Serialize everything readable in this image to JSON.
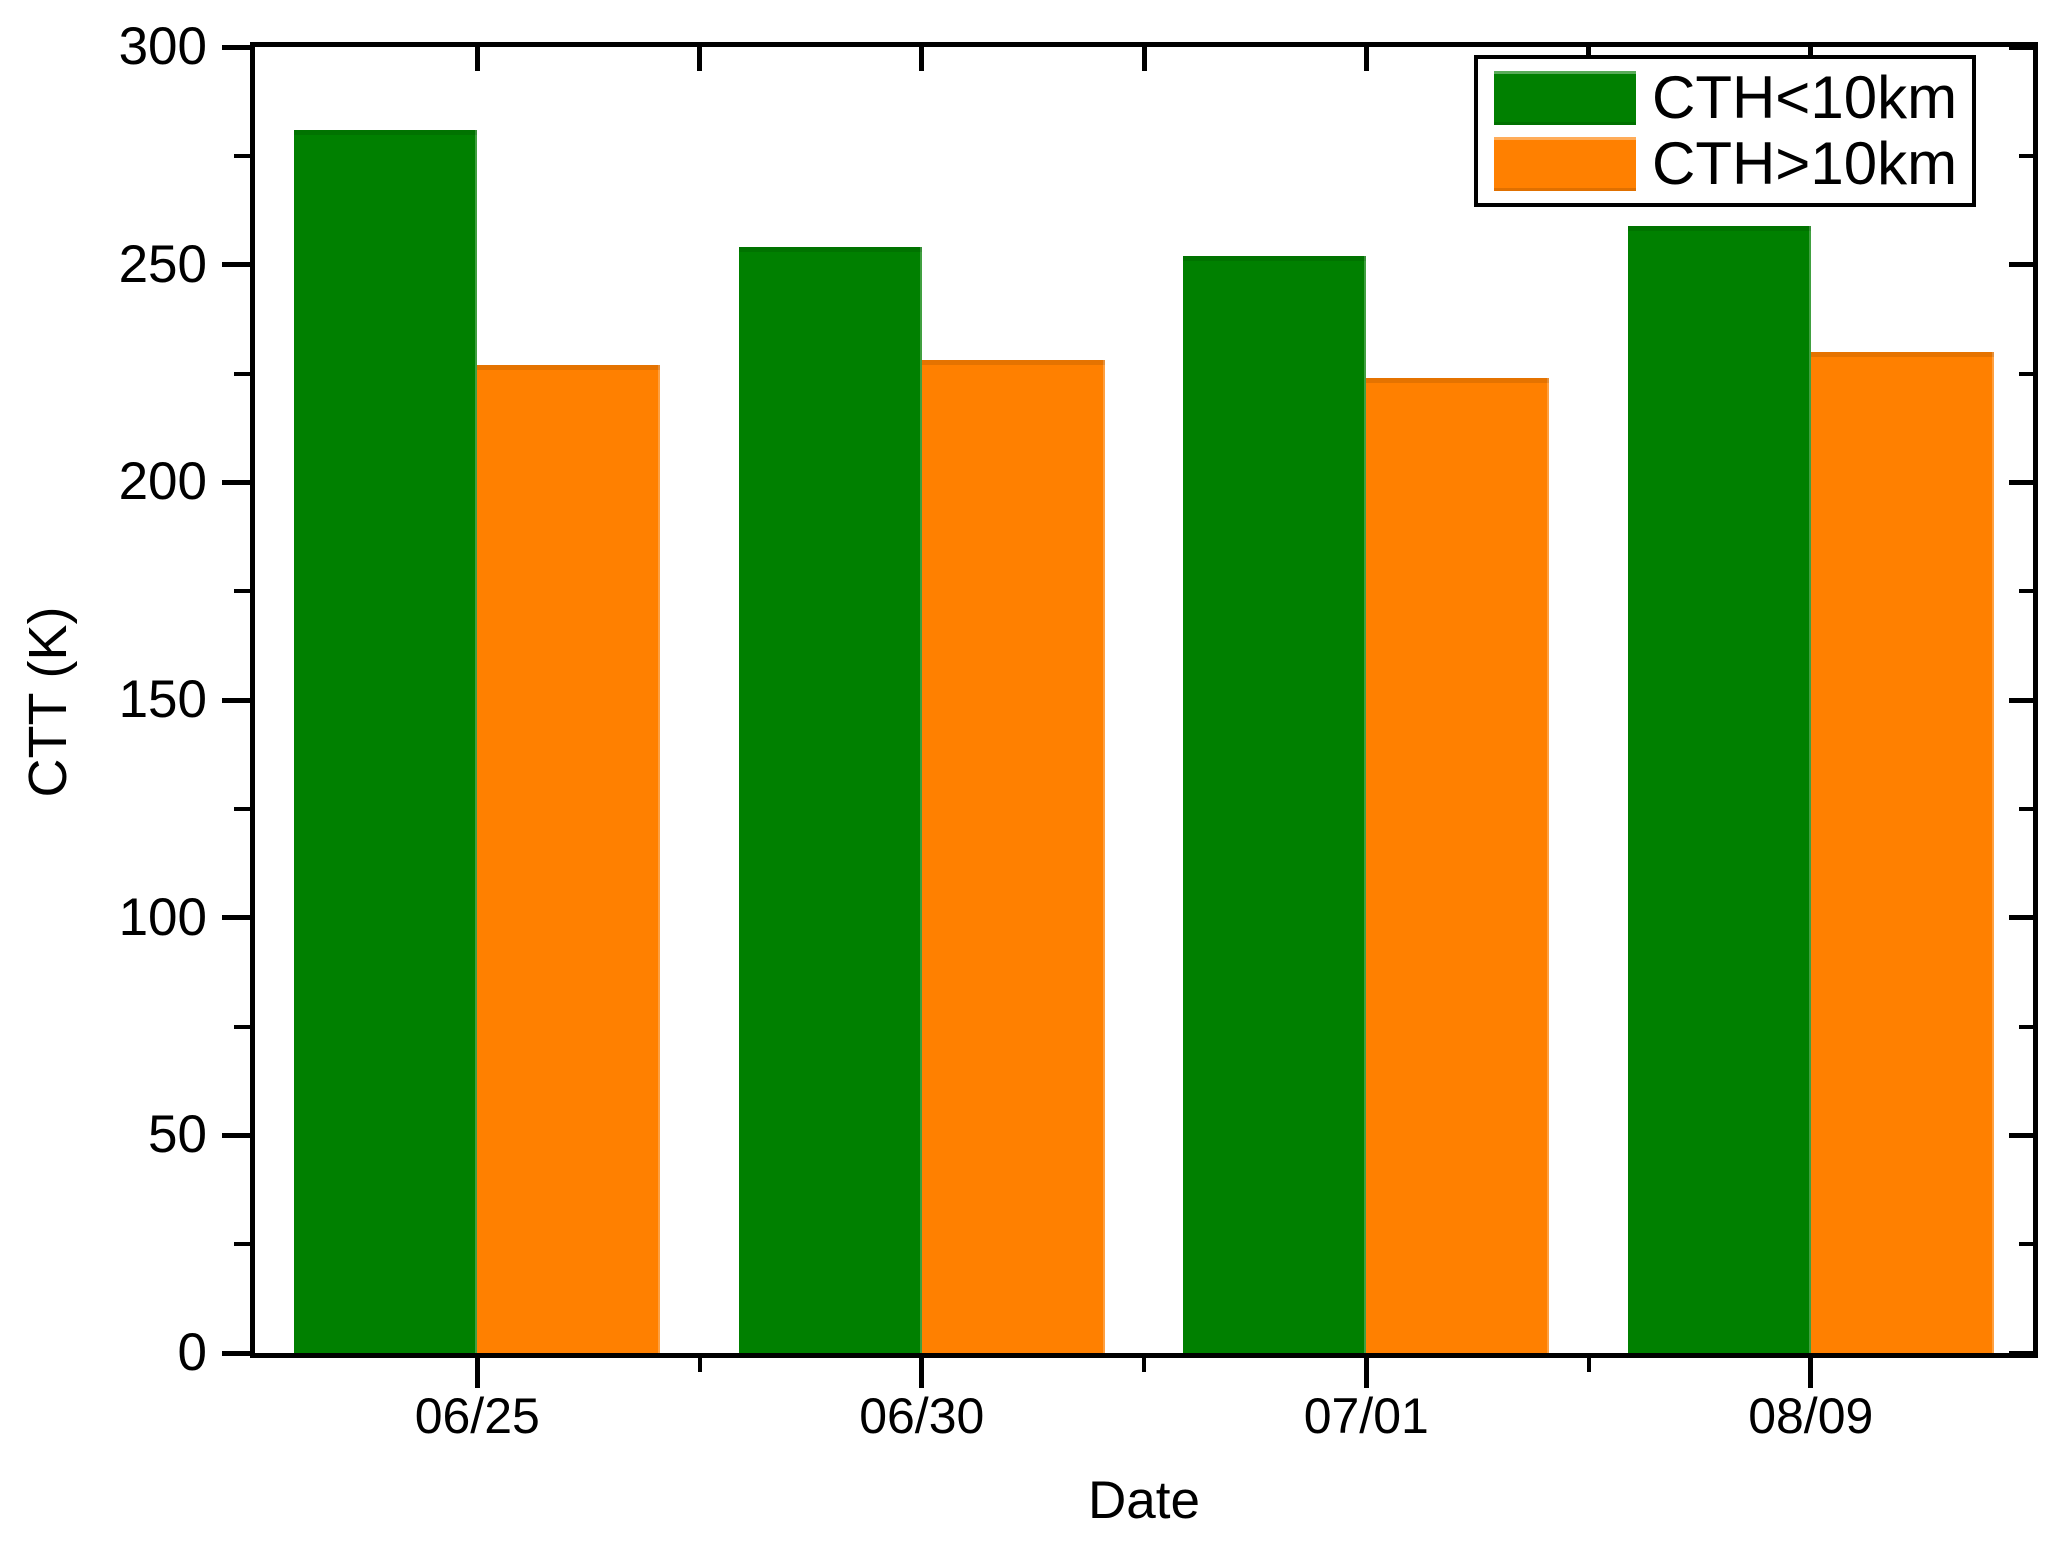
{
  "chart_data": {
    "type": "bar",
    "title": "",
    "xlabel": "Date",
    "ylabel": "CTT (K)",
    "categories": [
      "06/25",
      "06/30",
      "07/01",
      "08/09"
    ],
    "series": [
      {
        "name": "CTH<10km",
        "color": "#008000",
        "values": [
          281,
          254,
          252,
          259
        ]
      },
      {
        "name": "CTH>10km",
        "color": "#FF8000",
        "values": [
          227,
          228,
          224,
          230
        ]
      }
    ],
    "ylim": [
      0,
      300
    ],
    "yticks": [
      0,
      50,
      100,
      150,
      200,
      250,
      300
    ],
    "y_minor_step": 25,
    "grid": false,
    "legend_position": "top-right",
    "axis_color": "#000000",
    "background_color": "#ffffff"
  }
}
